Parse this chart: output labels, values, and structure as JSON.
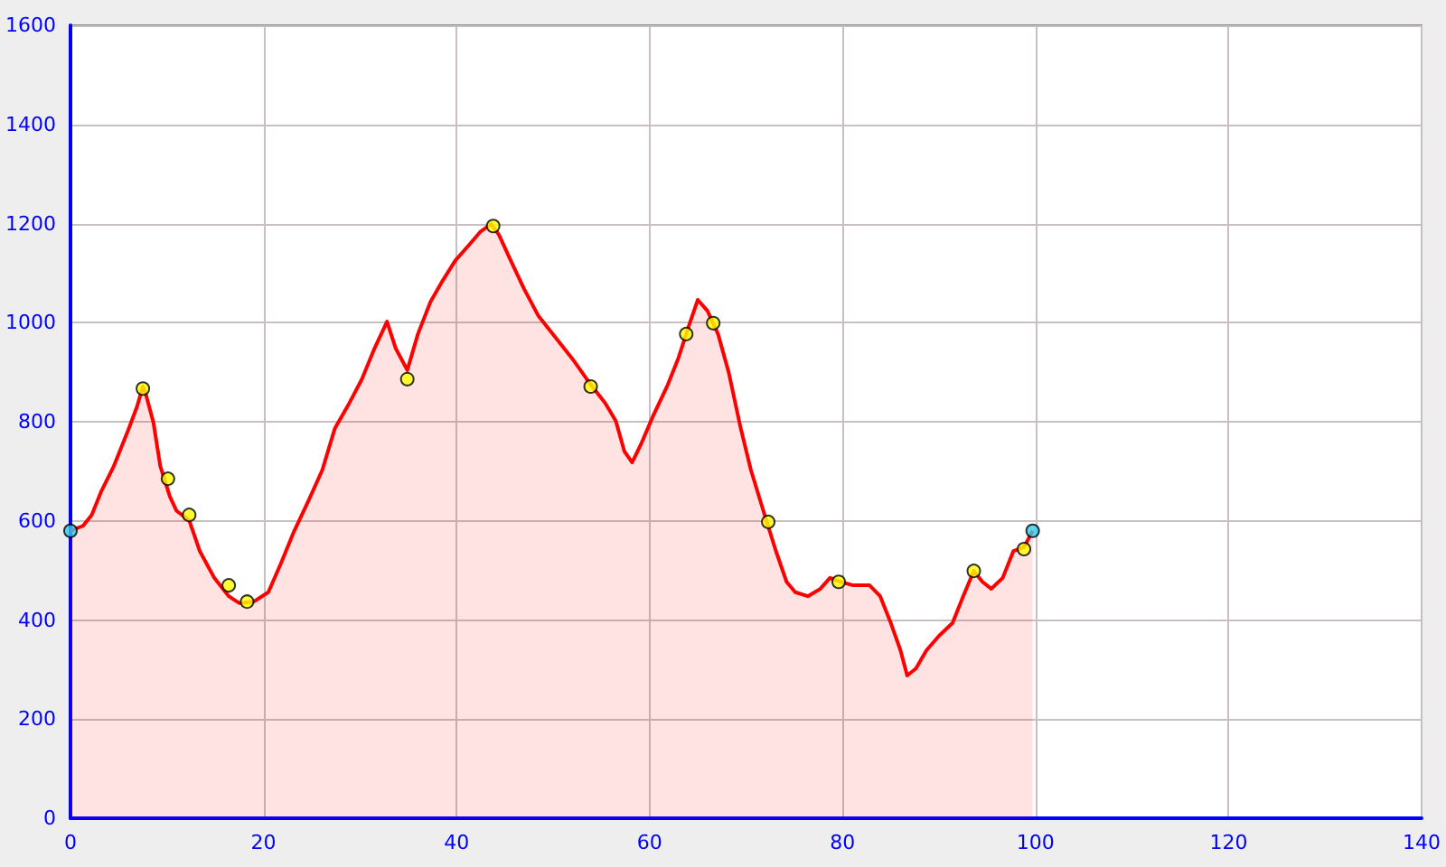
{
  "chart_data": {
    "type": "area",
    "xlim": [
      0,
      140
    ],
    "xticks": [
      0,
      20,
      40,
      60,
      80,
      100,
      120,
      140
    ],
    "ylim": [
      0,
      1600
    ],
    "yticks": [
      0,
      200,
      400,
      600,
      800,
      1000,
      1200,
      1400,
      1600
    ],
    "grid": true,
    "series": [
      {
        "color": "#ff0000",
        "marker": "none",
        "x": [
          0,
          1.3,
          2.2,
          3.2,
          4.5,
          6,
          6.9,
          7.5,
          7.8,
          8.6,
          9.3,
          10.3,
          11,
          12.3,
          13.4,
          14.9,
          16.4,
          17.5,
          19,
          20.5,
          21.8,
          23.1,
          24.6,
          26.1,
          27.4,
          28.9,
          30.2,
          31.5,
          32.8,
          33.7,
          34.9,
          36,
          37.3,
          38.6,
          39.9,
          41.4,
          42.5,
          43.6,
          44.4,
          45.7,
          47,
          48.5,
          50.3,
          52.2,
          53.9,
          55.4,
          56.5,
          57.4,
          58.2,
          59.1,
          60.4,
          61.9,
          63,
          64.1,
          65,
          66,
          67.1,
          68.2,
          69.4,
          70.5,
          71.8,
          73.1,
          74.2,
          75.1,
          76.4,
          77.7,
          78.7,
          79.8,
          81.1,
          82.8,
          83.9,
          85,
          86,
          86.7,
          87.6,
          88.7,
          90,
          91.4,
          92.5,
          93.6,
          94.5,
          95.4,
          96.6,
          97.7,
          98.8,
          99.7
        ],
        "values": [
          580,
          590,
          612,
          660,
          711,
          784,
          831,
          871,
          856,
          798,
          711,
          649,
          620,
          601,
          539,
          485,
          448,
          434,
          437,
          456,
          514,
          576,
          638,
          703,
          787,
          838,
          886,
          948,
          1002,
          948,
          904,
          977,
          1042,
          1086,
          1126,
          1159,
          1184,
          1199,
          1177,
          1122,
          1068,
          1013,
          969,
          922,
          875,
          838,
          802,
          740,
          718,
          754,
          813,
          875,
          929,
          995,
          1046,
          1024,
          977,
          900,
          791,
          703,
          620,
          539,
          477,
          456,
          448,
          463,
          485,
          477,
          470,
          470,
          448,
          394,
          339,
          288,
          302,
          339,
          368,
          394,
          448,
          499,
          477,
          463,
          485,
          539,
          547,
          580
        ]
      },
      {
        "type": "scatter",
        "color": "#ffff00",
        "marker": "circle",
        "x": [
          7.5,
          10.1,
          12.3,
          16.4,
          18.3,
          34.9,
          43.8,
          53.9,
          63.8,
          66.6,
          72.3,
          79.6,
          93.6,
          98.8
        ],
        "values": [
          867,
          685,
          612,
          470,
          437,
          886,
          1195,
          871,
          977,
          999,
          598,
          477,
          499,
          543
        ]
      },
      {
        "type": "scatter",
        "color": "#33ccee",
        "marker": "circle",
        "x": [
          0,
          99.7
        ],
        "values": [
          580,
          580
        ]
      }
    ]
  }
}
